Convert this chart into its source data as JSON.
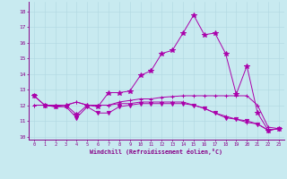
{
  "xlabel": "Windchill (Refroidissement éolien,°C)",
  "background_color": "#c8eaf0",
  "line_color": "#aa00aa",
  "ylim": [
    9.8,
    18.6
  ],
  "xlim": [
    -0.5,
    23.5
  ],
  "yticks": [
    10,
    11,
    12,
    13,
    14,
    15,
    16,
    17,
    18
  ],
  "xticks": [
    0,
    1,
    2,
    3,
    4,
    5,
    6,
    7,
    8,
    9,
    10,
    11,
    12,
    13,
    14,
    15,
    16,
    17,
    18,
    19,
    20,
    21,
    22,
    23
  ],
  "series": [
    [
      12.6,
      12.0,
      11.9,
      12.0,
      11.4,
      12.0,
      11.9,
      12.8,
      12.8,
      12.9,
      13.9,
      14.2,
      15.3,
      15.5,
      16.6,
      17.75,
      16.5,
      16.6,
      15.3,
      12.7,
      14.5,
      11.5,
      10.4,
      10.5
    ],
    [
      12.0,
      12.0,
      12.0,
      12.0,
      12.2,
      12.0,
      12.0,
      12.0,
      12.2,
      12.3,
      12.4,
      12.4,
      12.5,
      12.55,
      12.6,
      12.6,
      12.6,
      12.6,
      12.6,
      12.6,
      12.6,
      12.0,
      10.6,
      10.5
    ],
    [
      12.6,
      12.0,
      11.9,
      11.9,
      11.2,
      11.9,
      11.5,
      11.5,
      11.9,
      12.0,
      12.1,
      12.1,
      12.1,
      12.1,
      12.1,
      12.0,
      11.8,
      11.5,
      11.2,
      11.1,
      11.0,
      10.8,
      10.4,
      10.5
    ],
    [
      12.0,
      12.0,
      12.0,
      12.0,
      12.2,
      12.0,
      12.0,
      12.0,
      12.1,
      12.1,
      12.2,
      12.2,
      12.2,
      12.2,
      12.2,
      12.0,
      11.8,
      11.5,
      11.3,
      11.1,
      10.9,
      10.8,
      10.4,
      10.5
    ]
  ],
  "markers": [
    "*",
    "+",
    "v",
    "+"
  ],
  "markersizes": [
    4,
    3,
    3,
    3
  ]
}
